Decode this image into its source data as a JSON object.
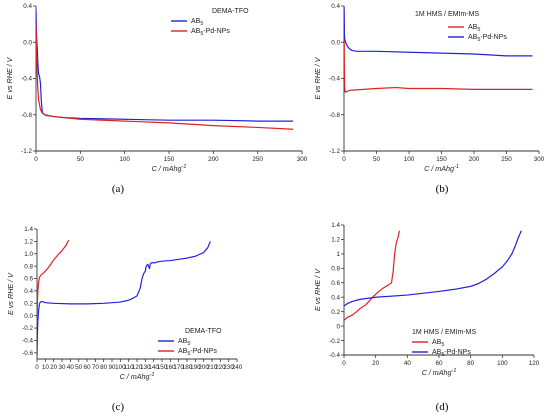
{
  "chart_data": [
    {
      "type": "line",
      "panel_label": "(a)",
      "title": "DEMA-TFO",
      "xlabel": "C / mAhg",
      "xlabel_sup": "-1",
      "ylabel": "E vs RHE / V",
      "xlim": [
        0,
        300
      ],
      "ylim": [
        -1.2,
        0.4
      ],
      "xticks": [
        0,
        50,
        100,
        150,
        200,
        250,
        300
      ],
      "yticks": [
        -1.2,
        -0.8,
        -0.4,
        0.0,
        0.4
      ],
      "ytick_labels": [
        "-1.2",
        "-0.8",
        "-0.4",
        "0.0",
        "0.4"
      ],
      "legend": {
        "position": "top-right"
      },
      "series": [
        {
          "name": "AB",
          "name_sub": "5",
          "color": "#2222dd",
          "x": [
            0,
            0.5,
            1,
            1.5,
            2,
            2.5,
            3,
            4,
            5,
            5.5,
            6,
            7,
            8,
            10,
            12,
            15,
            20,
            30,
            50,
            100,
            150,
            200,
            250,
            290
          ],
          "y": [
            0.36,
            0.1,
            0.0,
            -0.08,
            -0.2,
            -0.3,
            -0.35,
            -0.38,
            -0.45,
            -0.55,
            -0.65,
            -0.76,
            -0.79,
            -0.8,
            -0.81,
            -0.81,
            -0.82,
            -0.83,
            -0.84,
            -0.85,
            -0.86,
            -0.86,
            -0.87,
            -0.87
          ]
        },
        {
          "name": "AB",
          "name_sub": "5",
          "name_suffix": "-Pd-NPs",
          "color": "#dd2222",
          "x": [
            0,
            0.5,
            1,
            2,
            3,
            5,
            7,
            10,
            20,
            50,
            100,
            150,
            200,
            250,
            290
          ],
          "y": [
            0.2,
            -0.1,
            -0.25,
            -0.5,
            -0.64,
            -0.74,
            -0.78,
            -0.8,
            -0.82,
            -0.85,
            -0.87,
            -0.89,
            -0.92,
            -0.94,
            -0.96
          ]
        }
      ]
    },
    {
      "type": "line",
      "panel_label": "(b)",
      "title": "1M HMS / EMIm-MS",
      "xlabel": "C / mAhg",
      "xlabel_sup": "-1",
      "ylabel": "E vs RHE / V",
      "xlim": [
        0,
        300
      ],
      "ylim": [
        -1.2,
        0.4
      ],
      "xticks": [
        0,
        50,
        100,
        150,
        200,
        250,
        300
      ],
      "yticks": [
        -1.2,
        -0.8,
        -0.4,
        0.0,
        0.4
      ],
      "ytick_labels": [
        "-1.2",
        "-0.8",
        "-0.4",
        "0.0",
        "0.4"
      ],
      "legend": {
        "position": "top-right"
      },
      "series": [
        {
          "name": "AB",
          "name_sub": "5",
          "color": "#dd2222",
          "x": [
            0,
            0.3,
            0.6,
            1,
            2,
            3,
            5,
            10,
            30,
            50,
            80,
            100,
            150,
            200,
            250,
            290
          ],
          "y": [
            0.38,
            0.0,
            -0.3,
            -0.5,
            -0.55,
            -0.55,
            -0.54,
            -0.53,
            -0.52,
            -0.51,
            -0.5,
            -0.51,
            -0.51,
            -0.52,
            -0.52,
            -0.52
          ]
        },
        {
          "name": "AB",
          "name_sub": "5",
          "name_suffix": "-Pd-NPs",
          "color": "#2222dd",
          "x": [
            0,
            0.3,
            0.6,
            1,
            2,
            3,
            5,
            8,
            12,
            20,
            30,
            50,
            100,
            150,
            200,
            250,
            290
          ],
          "y": [
            0.4,
            0.3,
            0.1,
            0.04,
            0.01,
            -0.01,
            -0.04,
            -0.07,
            -0.09,
            -0.1,
            -0.1,
            -0.1,
            -0.11,
            -0.12,
            -0.13,
            -0.15,
            -0.15
          ]
        }
      ]
    },
    {
      "type": "line",
      "panel_label": "(c)",
      "title": "DEMA-TFO",
      "xlabel": "C / mAhg",
      "xlabel_sup": "-1",
      "ylabel": "E vs RHE / V",
      "xlim": [
        0,
        240
      ],
      "ylim": [
        -0.7,
        1.4
      ],
      "xticks": [
        0,
        10,
        20,
        30,
        40,
        50,
        60,
        70,
        80,
        90,
        100,
        110,
        120,
        130,
        140,
        150,
        160,
        170,
        180,
        190,
        200,
        210,
        220,
        230,
        240
      ],
      "yticks": [
        -0.6,
        -0.4,
        -0.2,
        0.0,
        0.2,
        0.4,
        0.6,
        0.8,
        1.0,
        1.2,
        1.4
      ],
      "ytick_labels": [
        "-0.6",
        "-0.4",
        "-0.2",
        "0.0",
        "0.2",
        "0.4",
        "0.6",
        "0.8",
        "1.0",
        "1.2",
        "1.4"
      ],
      "legend": {
        "position": "bottom-right"
      },
      "series": [
        {
          "name": "AB",
          "name_sub": "5",
          "color": "#2222dd",
          "x": [
            0,
            0.5,
            1,
            2,
            3,
            4,
            6,
            10,
            20,
            40,
            60,
            80,
            100,
            110,
            115,
            120,
            124,
            126,
            128,
            130,
            131,
            133,
            135,
            136,
            138,
            140,
            145,
            150,
            160,
            170,
            180,
            190,
            200,
            205,
            208
          ],
          "y": [
            -0.65,
            -0.3,
            -0.1,
            0.1,
            0.19,
            0.22,
            0.23,
            0.21,
            0.2,
            0.19,
            0.19,
            0.2,
            0.22,
            0.25,
            0.28,
            0.32,
            0.45,
            0.6,
            0.68,
            0.72,
            0.8,
            0.83,
            0.76,
            0.84,
            0.86,
            0.85,
            0.87,
            0.88,
            0.89,
            0.91,
            0.93,
            0.96,
            1.02,
            1.1,
            1.2
          ]
        },
        {
          "name": "AB",
          "name_sub": "5",
          "name_suffix": "-Pd-NPs",
          "color": "#dd2222",
          "x": [
            0,
            0.5,
            1,
            2,
            3,
            5,
            7,
            10,
            15,
            20,
            25,
            30,
            35,
            38
          ],
          "y": [
            -0.1,
            0.2,
            0.4,
            0.55,
            0.62,
            0.66,
            0.68,
            0.72,
            0.8,
            0.9,
            0.98,
            1.05,
            1.14,
            1.22
          ]
        }
      ]
    },
    {
      "type": "line",
      "panel_label": "(d)",
      "title": "1M HMS / EMIm-MS",
      "xlabel": "C / mAhg",
      "xlabel_sup": "-1",
      "ylabel": "E vs RHE / V",
      "xlim": [
        0,
        120
      ],
      "ylim": [
        -0.4,
        1.4
      ],
      "xticks": [
        0,
        20,
        40,
        60,
        80,
        100,
        120
      ],
      "yticks": [
        -0.4,
        -0.2,
        0.0,
        0.2,
        0.4,
        0.6,
        0.8,
        1.0,
        1.2,
        1.4
      ],
      "ytick_labels": [
        "-0.4",
        "-0.2",
        "0",
        "0.2",
        "0.4",
        "0.6",
        "0.8",
        "1",
        "1.2",
        "1.4"
      ],
      "legend": {
        "position": "bottom-right"
      },
      "series": [
        {
          "name": "AB",
          "name_sub": "5",
          "color": "#dd2222",
          "x": [
            0,
            1,
            2,
            5,
            8,
            10,
            14,
            18,
            22,
            25,
            28,
            30,
            31,
            32,
            33,
            34,
            35
          ],
          "y": [
            0.08,
            0.1,
            0.12,
            0.15,
            0.2,
            0.24,
            0.3,
            0.4,
            0.48,
            0.53,
            0.57,
            0.6,
            0.75,
            1.0,
            1.15,
            1.22,
            1.32
          ]
        },
        {
          "name": "AB",
          "name_sub": "5",
          "name_suffix": "-Pd-NPs",
          "color": "#2222dd",
          "x": [
            0,
            2,
            5,
            10,
            20,
            40,
            60,
            70,
            80,
            85,
            90,
            95,
            100,
            103,
            106,
            108,
            110,
            112
          ],
          "y": [
            0.28,
            0.31,
            0.34,
            0.37,
            0.4,
            0.43,
            0.48,
            0.51,
            0.55,
            0.59,
            0.65,
            0.73,
            0.82,
            0.9,
            1.0,
            1.1,
            1.22,
            1.32
          ]
        }
      ]
    }
  ]
}
